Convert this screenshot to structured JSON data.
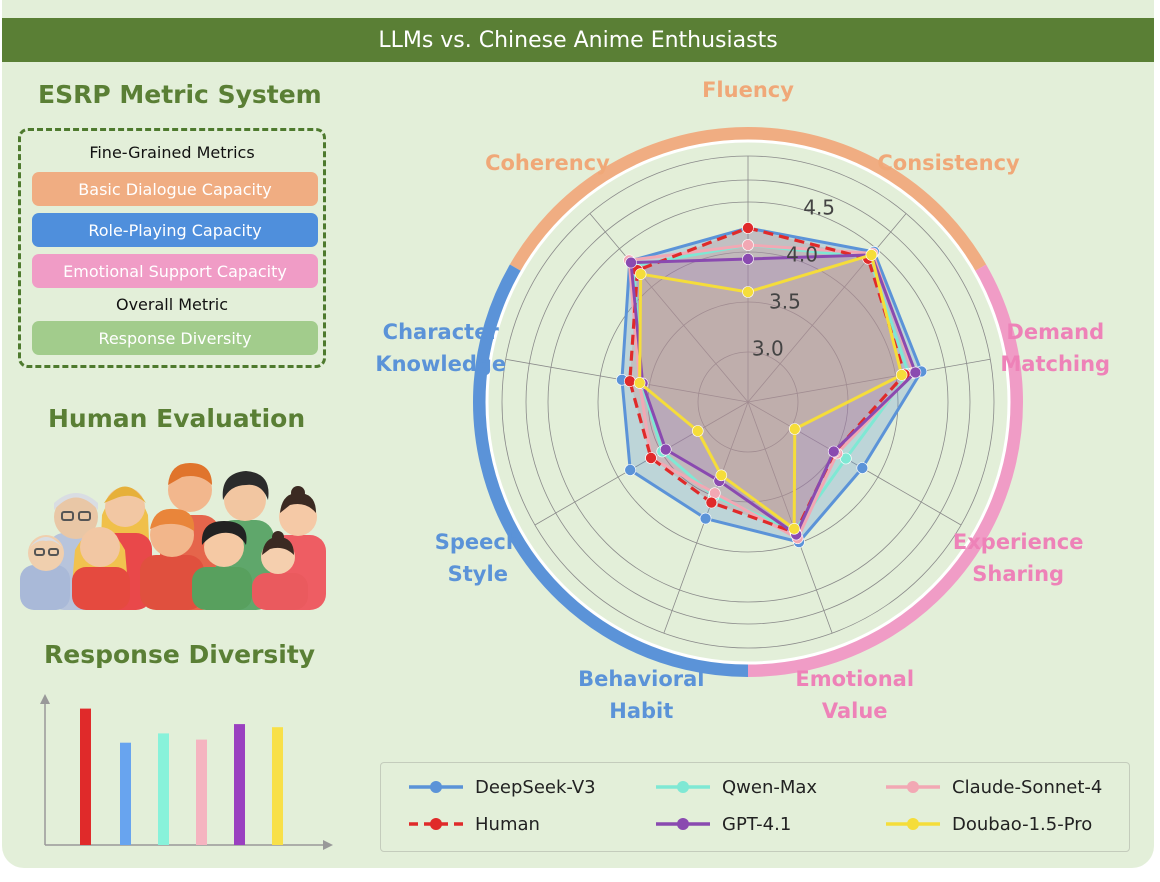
{
  "title": "LLMs vs. Chinese Anime Enthusiasts",
  "left_panel": {
    "metric_system_title": "ESRP Metric System",
    "fine_grained_label": "Fine-Grained Metrics",
    "capacities": [
      {
        "label": "Basic Dialogue Capacity",
        "color": "#f0ad82"
      },
      {
        "label": "Role-Playing Capacity",
        "color": "#4f8fdc"
      },
      {
        "label": "Emotional Support Capacity",
        "color": "#f09cc6"
      }
    ],
    "overall_label": "Overall Metric",
    "overall_metric": {
      "label": "Response Diversity",
      "color": "#a2cc8c"
    },
    "human_evaluation_title": "Human Evaluation",
    "response_diversity_title": "Response Diversity"
  },
  "diversity_bars": {
    "values": [
      0.88,
      0.66,
      0.72,
      0.68,
      0.78,
      0.76
    ],
    "colors": [
      "#e02a2a",
      "#68a4ef",
      "#88f2da",
      "#f5b4c0",
      "#9a40c0",
      "#f8e048"
    ]
  },
  "chart_data": {
    "type": "radar",
    "title": "LLMs vs. Chinese Anime Enthusiasts",
    "axes": [
      "Fluency",
      "Consistency",
      "Demand Matching",
      "Experience Sharing",
      "Emotional Value",
      "Behavioral Habit",
      "Speech Style",
      "Character Knowledge",
      "Coherency"
    ],
    "axis_label_lines": [
      [
        "Fluency"
      ],
      [
        "Consistency"
      ],
      [
        "Demand",
        "Matching"
      ],
      [
        "Experience",
        "Sharing"
      ],
      [
        "Emotional",
        "Value"
      ],
      [
        "Behavioral",
        "Habit"
      ],
      [
        "Speech",
        "Style"
      ],
      [
        "Character",
        "Knowledge"
      ],
      [
        "Coherency"
      ]
    ],
    "axis_label_colors": [
      "#f0a878",
      "#f0a878",
      "#ee82b8",
      "#ee82b8",
      "#ee82b8",
      "#5b93d8",
      "#5b93d8",
      "#5b93d8",
      "#f0a878"
    ],
    "groups": [
      {
        "name": "Basic Dialogue Capacity",
        "axes": [
          "Coherency",
          "Fluency",
          "Consistency"
        ],
        "color": "#f0ad82"
      },
      {
        "name": "Emotional Support Capacity",
        "axes": [
          "Demand Matching",
          "Experience Sharing",
          "Emotional Value"
        ],
        "color": "#f09cc6"
      },
      {
        "name": "Role-Playing Capacity",
        "axes": [
          "Behavioral Habit",
          "Speech Style",
          "Character Knowledge"
        ],
        "color": "#5b93d8"
      }
    ],
    "rlim": [
      2.5,
      4.5
    ],
    "rings": [
      3.0,
      3.5,
      4.0,
      4.5
    ],
    "ring_labels": [
      "3.0",
      "3.5",
      "4.0",
      "4.5"
    ],
    "series": [
      {
        "name": "DeepSeek-V3",
        "color": "#5b93d8",
        "dashed": false,
        "fill": "rgba(91,147,216,0.28)",
        "values": [
          4.24,
          4.46,
          4.26,
          3.82,
          3.99,
          3.74,
          3.86,
          3.78,
          4.34
        ]
      },
      {
        "name": "Qwen-Max",
        "color": "#7fe8d4",
        "dashed": false,
        "fill": "rgba(127,232,212,0.15)",
        "values": [
          4.07,
          4.39,
          4.13,
          3.63,
          3.87,
          3.5,
          3.49,
          3.58,
          4.28
        ]
      },
      {
        "name": "Claude-Sonnet-4",
        "color": "#f2a8b4",
        "dashed": false,
        "fill": "rgba(242,168,180,0.18)",
        "values": [
          4.07,
          4.44,
          4.18,
          3.53,
          3.95,
          3.47,
          3.62,
          3.6,
          4.35
        ]
      },
      {
        "name": "Human",
        "color": "#e02a2a",
        "dashed": true,
        "fill": "rgba(224,42,42,0.12)",
        "values": [
          4.24,
          4.37,
          4.09,
          3.5,
          3.89,
          3.57,
          3.62,
          3.7,
          4.22
        ]
      },
      {
        "name": "GPT-4.1",
        "color": "#8a4ab0",
        "dashed": false,
        "fill": "rgba(138,74,176,0.15)",
        "values": [
          3.93,
          4.42,
          4.2,
          3.49,
          3.91,
          3.34,
          3.45,
          3.57,
          4.32
        ]
      },
      {
        "name": "Doubao-1.5-Pro",
        "color": "#f5dd3a",
        "dashed": false,
        "fill": "rgba(245,221,58,0.10)",
        "values": [
          3.6,
          4.42,
          4.06,
          3.04,
          3.85,
          3.28,
          3.08,
          3.6,
          4.17
        ]
      }
    ],
    "legend": {
      "position": "bottom",
      "columns": 3
    }
  }
}
